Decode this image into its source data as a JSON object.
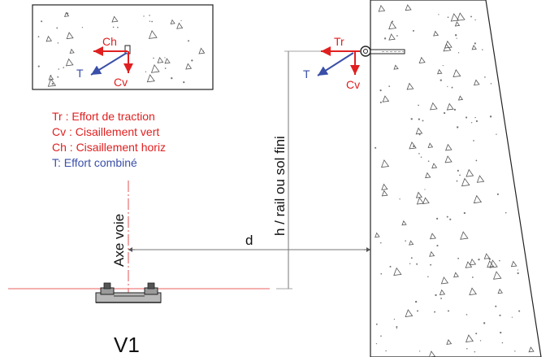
{
  "inset": {
    "labels": {
      "ch": "Ch",
      "t": "T",
      "cv": "Cv"
    }
  },
  "wall": {
    "labels": {
      "tr": "Tr",
      "t": "T",
      "cv": "Cv"
    }
  },
  "legend": [
    {
      "text": "Tr : Effort de traction",
      "color": "#e02020"
    },
    {
      "text": "Cv : Cisaillement vert",
      "color": "#e02020"
    },
    {
      "text": "Ch : Cisaillement horiz",
      "color": "#e02020"
    },
    {
      "text": "T: Effort combiné",
      "color": "#3a4fa8"
    }
  ],
  "dimensions": {
    "axis_label": "Axe voie",
    "distance_label": "d",
    "height_label": "h / rail ou sol fini"
  },
  "caption": "V1",
  "colors": {
    "red": "#e02020",
    "blue": "#3a4fa8",
    "line": "#f08080",
    "ink": "#111111"
  }
}
